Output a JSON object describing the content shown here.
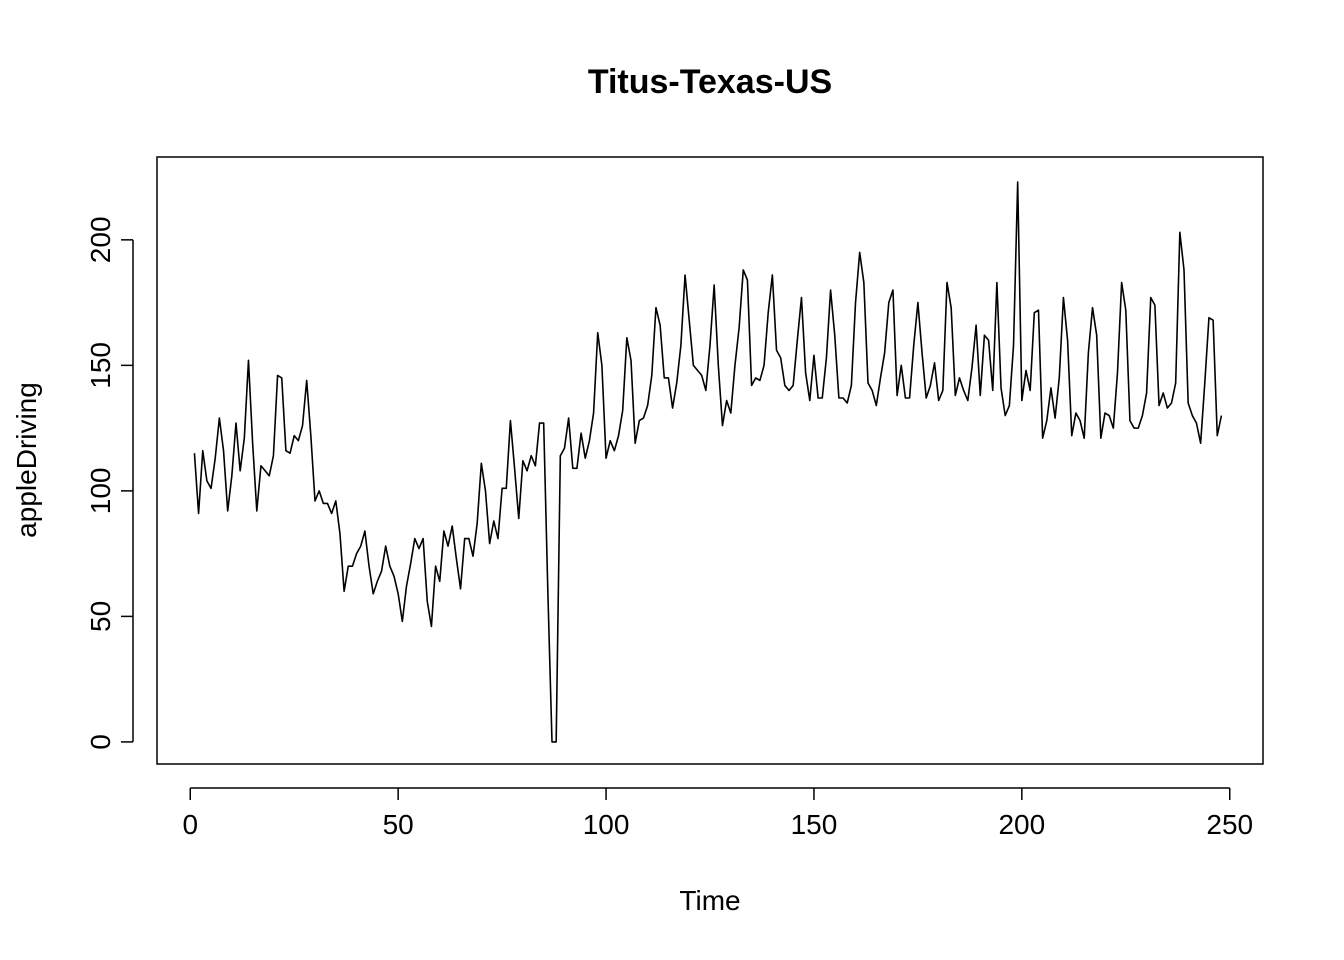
{
  "chart_data": {
    "type": "line",
    "title": "Titus-Texas-US",
    "xlabel": "Time",
    "ylabel": "appleDriving",
    "xlim": [
      -8,
      258
    ],
    "ylim": [
      -8.8,
      233
    ],
    "xticks": [
      0,
      50,
      100,
      150,
      200,
      250
    ],
    "yticks": [
      0,
      50,
      100,
      150,
      200
    ],
    "grid": false,
    "legend": "none",
    "color": "#000000",
    "series": [
      {
        "x_start": 1,
        "values": [
          115,
          91,
          116,
          104,
          101,
          113,
          129,
          116,
          92,
          106,
          127,
          108,
          121,
          152,
          119,
          92,
          110,
          108,
          106,
          114,
          146,
          145,
          116,
          115,
          122,
          120,
          126,
          144,
          122,
          96,
          100,
          95,
          95,
          91,
          96,
          83,
          60,
          70,
          70,
          75,
          78,
          84,
          70,
          59,
          64,
          68,
          78,
          70,
          66,
          59,
          48,
          62,
          71,
          81,
          77,
          81,
          56,
          46,
          70,
          64,
          84,
          78,
          86,
          73,
          61,
          81,
          81,
          74,
          87,
          111,
          100,
          79,
          88,
          81,
          101,
          101,
          128,
          109,
          89,
          112,
          108,
          114,
          110,
          127,
          127,
          60,
          0,
          0,
          114,
          117,
          129,
          109,
          109,
          123,
          113,
          120,
          131,
          163,
          150,
          113,
          120,
          116,
          122,
          132,
          161,
          152,
          119,
          128,
          129,
          134,
          146,
          173,
          166,
          145,
          145,
          133,
          143,
          158,
          186,
          168,
          150,
          148,
          146,
          140,
          158,
          182,
          150,
          126,
          136,
          131,
          150,
          165,
          188,
          184,
          142,
          145,
          144,
          150,
          171,
          186,
          156,
          153,
          142,
          140,
          142,
          160,
          177,
          147,
          136,
          154,
          137,
          137,
          153,
          180,
          162,
          137,
          137,
          135,
          142,
          175,
          195,
          183,
          143,
          140,
          134,
          145,
          155,
          175,
          180,
          138,
          150,
          137,
          137,
          158,
          175,
          155,
          137,
          142,
          151,
          136,
          140,
          183,
          173,
          138,
          145,
          140,
          136,
          149,
          166,
          138,
          162,
          160,
          140,
          183,
          141,
          130,
          134,
          158,
          223,
          136,
          148,
          140,
          171,
          172,
          121,
          128,
          141,
          129,
          145,
          177,
          160,
          122,
          131,
          128,
          121,
          155,
          173,
          162,
          121,
          131,
          130,
          125,
          147,
          183,
          172,
          128,
          125,
          125,
          130,
          139,
          177,
          174,
          134,
          139,
          133,
          135,
          143,
          203,
          188,
          135,
          130,
          127,
          119,
          143,
          169,
          168,
          122,
          130
        ]
      }
    ]
  }
}
